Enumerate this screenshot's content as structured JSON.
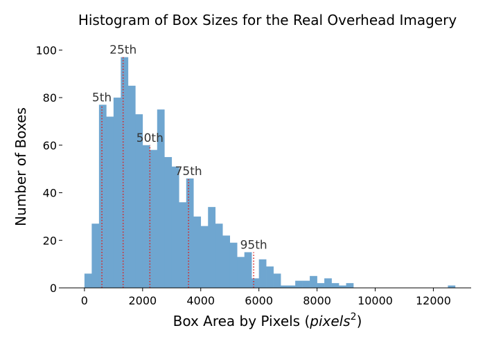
{
  "chart_data": {
    "type": "bar",
    "title": "Histogram of Box Sizes for the Real Overhead Imagery",
    "xlabel_text": "Box Area by Pixels (",
    "xlabel_math": "pixels",
    "xlabel_sup": "2",
    "xlabel_close": ")",
    "ylabel": "Number of Boxes",
    "xlim": [
      -760,
      13300
    ],
    "ylim": [
      0,
      103
    ],
    "bin_start": 0,
    "bin_width": 250,
    "counts": [
      6,
      27,
      77,
      72,
      80,
      97,
      85,
      73,
      60,
      58,
      75,
      55,
      51,
      36,
      46,
      30,
      26,
      34,
      27,
      22,
      19,
      13,
      15,
      4,
      12,
      9,
      6,
      1,
      1,
      3,
      3,
      5,
      2,
      4,
      2,
      1,
      2,
      0,
      0,
      0,
      0,
      0,
      0,
      0,
      0,
      0,
      0,
      0,
      0,
      0,
      1
    ],
    "xticks": [
      0,
      2000,
      4000,
      6000,
      8000,
      10000,
      12000
    ],
    "xtick_labels": [
      "0",
      "2000",
      "4000",
      "6000",
      "8000",
      "10000",
      "12000"
    ],
    "yticks": [
      0,
      20,
      40,
      60,
      80,
      100
    ],
    "ytick_labels": [
      "0",
      "20",
      "40",
      "60",
      "80",
      "100"
    ],
    "bar_color": "#6fa6d0",
    "percentile_color": "#d62728",
    "percentiles": [
      {
        "label": "5th",
        "x": 600,
        "y": 77
      },
      {
        "label": "25th",
        "x": 1330,
        "y": 97
      },
      {
        "label": "50th",
        "x": 2250,
        "y": 60
      },
      {
        "label": "75th",
        "x": 3580,
        "y": 46
      },
      {
        "label": "95th",
        "x": 5820,
        "y": 15
      }
    ],
    "grid": false
  }
}
